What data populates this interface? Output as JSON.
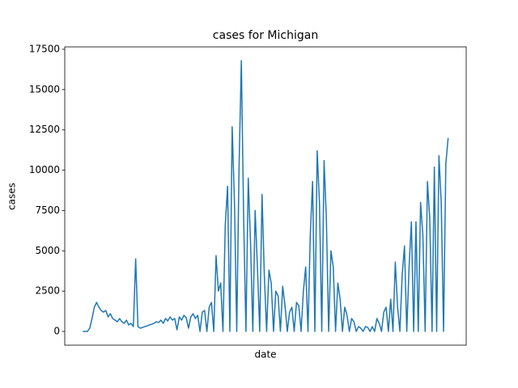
{
  "chart_data": {
    "type": "line",
    "title": "cases for Michigan",
    "x_label": "date",
    "y_label": "cases",
    "categories": [
      null,
      null,
      null,
      null,
      null,
      null,
      null,
      null,
      null,
      null,
      null,
      null,
      null,
      null,
      null,
      null,
      null,
      null,
      null,
      null,
      null,
      null,
      null,
      null,
      null,
      null,
      null,
      null,
      null,
      null,
      null,
      null,
      null,
      null,
      null,
      null,
      null,
      null,
      null,
      null,
      null,
      null,
      null,
      null,
      null,
      null,
      null,
      null,
      null,
      null,
      null,
      null,
      null,
      null,
      null,
      null,
      null,
      null,
      null,
      null,
      null,
      null,
      null,
      null,
      null,
      null,
      null,
      null,
      null,
      null,
      null,
      null,
      null,
      null,
      null,
      null,
      null,
      null,
      null,
      null,
      null,
      null,
      null,
      null,
      null,
      null,
      null,
      null,
      null,
      null,
      null,
      null,
      null,
      null,
      null,
      null,
      null,
      null,
      null,
      null,
      null,
      null,
      null,
      null,
      null,
      null,
      null,
      null,
      null,
      null,
      null,
      null,
      null,
      null,
      null,
      null,
      null,
      null,
      null,
      null,
      null,
      null,
      null,
      null,
      null,
      null,
      null,
      null,
      null,
      null,
      null,
      null,
      null,
      null,
      null,
      null,
      null,
      null,
      null,
      null,
      null,
      null,
      null,
      null,
      null,
      null,
      null,
      null,
      null,
      null,
      null,
      null,
      null,
      null,
      null,
      null,
      null,
      null,
      null,
      null
    ],
    "series": [
      {
        "name": "cases",
        "color": "#1f77b4",
        "values": [
          0,
          0,
          0,
          200,
          800,
          1500,
          1800,
          1500,
          1300,
          1200,
          1300,
          900,
          1100,
          800,
          700,
          600,
          800,
          600,
          500,
          700,
          400,
          500,
          300,
          4500,
          300,
          200,
          250,
          300,
          350,
          400,
          450,
          500,
          600,
          550,
          700,
          500,
          800,
          650,
          900,
          700,
          800,
          100,
          900,
          700,
          1000,
          850,
          200,
          900,
          1100,
          800,
          1000,
          0,
          1200,
          1300,
          0,
          1500,
          1800,
          0,
          4700,
          2500,
          3000,
          0,
          6600,
          9000,
          0,
          12700,
          8000,
          0,
          10200,
          16800,
          7000,
          0,
          9500,
          5500,
          0,
          7500,
          4000,
          0,
          8500,
          3500,
          0,
          3800,
          3000,
          0,
          2500,
          2200,
          0,
          2800,
          1600,
          0,
          1200,
          1500,
          0,
          1800,
          1600,
          0,
          2500,
          4000,
          0,
          6000,
          9300,
          0,
          11200,
          8000,
          0,
          10600,
          7000,
          0,
          5000,
          4000,
          0,
          3000,
          2000,
          0,
          1500,
          1000,
          0,
          800,
          600,
          0,
          300,
          200,
          0,
          300,
          250,
          0,
          300,
          0,
          800,
          500,
          0,
          1200,
          1500,
          0,
          2000,
          0,
          4300,
          1500,
          0,
          3500,
          5300,
          0,
          4000,
          6800,
          0,
          6800,
          0,
          8000,
          6000,
          0,
          9300,
          7000,
          0,
          10200,
          0,
          10900,
          8000,
          0,
          10400,
          12000
        ]
      }
    ],
    "ylim": [
      -852,
      17650
    ],
    "yticks": [
      0,
      2500,
      5000,
      7500,
      10000,
      12500,
      15000,
      17500
    ]
  }
}
